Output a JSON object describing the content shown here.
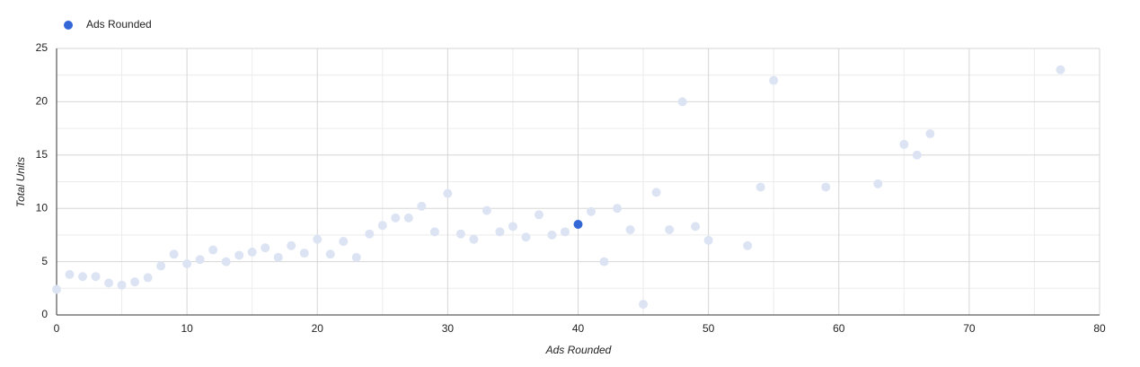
{
  "chart_data": {
    "type": "scatter",
    "x_label": "Ads Rounded",
    "y_label": "Total Units",
    "series": [
      {
        "name": "Ads Rounded",
        "color": "#3367d6",
        "faded_color": "#dce4f4",
        "highlighted_index": 40,
        "x": [
          0,
          1,
          2,
          3,
          4,
          5,
          6,
          7,
          8,
          9,
          10,
          11,
          12,
          13,
          14,
          15,
          16,
          17,
          18,
          19,
          20,
          21,
          22,
          23,
          24,
          25,
          26,
          27,
          28,
          29,
          30,
          31,
          32,
          33,
          34,
          35,
          36,
          37,
          38,
          39,
          40,
          41,
          42,
          43,
          44,
          45,
          46,
          47,
          48,
          49,
          50,
          53,
          54,
          55,
          59,
          63,
          65,
          66,
          67,
          77
        ],
        "values": [
          2.4,
          3.8,
          3.6,
          3.6,
          3.0,
          2.8,
          3.1,
          3.5,
          4.6,
          5.7,
          4.8,
          5.2,
          6.1,
          5.0,
          5.6,
          5.9,
          6.3,
          5.4,
          6.5,
          5.8,
          7.1,
          5.7,
          6.9,
          5.4,
          7.6,
          8.4,
          9.1,
          9.1,
          10.2,
          7.8,
          11.4,
          7.6,
          7.1,
          9.8,
          7.8,
          8.3,
          7.3,
          9.4,
          7.5,
          7.8,
          8.5,
          9.7,
          5.0,
          10.0,
          8.0,
          1.0,
          11.5,
          8.0,
          20.0,
          8.3,
          7.0,
          6.5,
          12.0,
          22.0,
          12.0,
          12.3,
          16.0,
          15.0,
          17.0,
          23.0
        ]
      }
    ],
    "xlim": [
      0,
      80
    ],
    "xticks": [
      0,
      10,
      20,
      30,
      40,
      50,
      60,
      70,
      80
    ],
    "ylim": [
      0,
      25
    ],
    "yticks": [
      0,
      5,
      10,
      15,
      20,
      25
    ],
    "grid": true,
    "minor_grid": true,
    "legend": "top-left"
  }
}
